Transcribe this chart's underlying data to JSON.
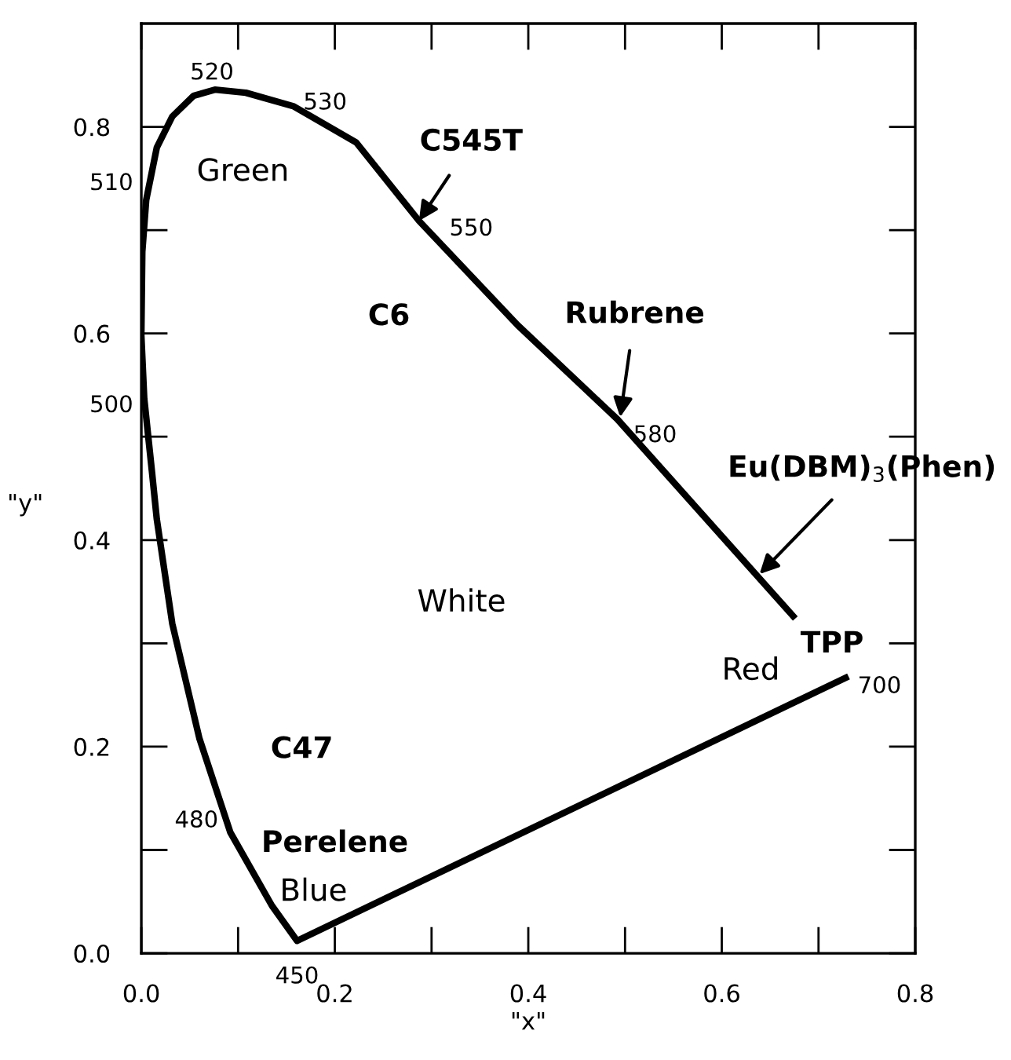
{
  "chart_data": {
    "type": "line",
    "xlabel": "\"x\"",
    "ylabel": "\"y\"",
    "color": "#000000",
    "marker": "none",
    "line_style": "solid",
    "grid": false,
    "legend": false,
    "x": [
      0.731,
      0.161,
      0.135,
      0.092,
      0.06,
      0.032,
      0.016,
      0.011,
      0.003,
      0.0,
      0.001,
      0.005,
      0.016,
      0.032,
      0.054,
      0.076,
      0.108,
      0.157,
      0.222,
      0.287,
      0.389,
      0.492,
      0.676
    ],
    "values": [
      0.268,
      0.012,
      0.046,
      0.117,
      0.208,
      0.319,
      0.42,
      0.466,
      0.537,
      0.598,
      0.679,
      0.729,
      0.78,
      0.81,
      0.83,
      0.836,
      0.833,
      0.82,
      0.785,
      0.709,
      0.608,
      0.517,
      0.324
    ],
    "xlim": [
      0,
      0.8
    ],
    "ylim": [
      0,
      0.9
    ],
    "xticks": [
      {
        "value": 0,
        "label": "0.0"
      },
      0.2,
      0.4,
      0.6,
      0.8
    ],
    "yticks": [
      {
        "value": 0,
        "label": "0.0"
      },
      0.2,
      0.4,
      0.6,
      0.8
    ],
    "annotations": [
      "520",
      "530",
      "510",
      "550",
      "500",
      "580",
      "480",
      "450",
      "700",
      "Green",
      "White",
      "Red",
      "Blue",
      {
        "text": "C545T",
        "x": 0.287,
        "y": 0.709
      },
      "C6",
      {
        "text": "Rubrene",
        "x": 0.495,
        "y": 0.519
      },
      {
        "text": "Eu(DBM)$_{3}$(Phen)",
        "x": 0.639,
        "y": 0.367
      },
      "TPP",
      "C47",
      "Perelene"
    ]
  }
}
